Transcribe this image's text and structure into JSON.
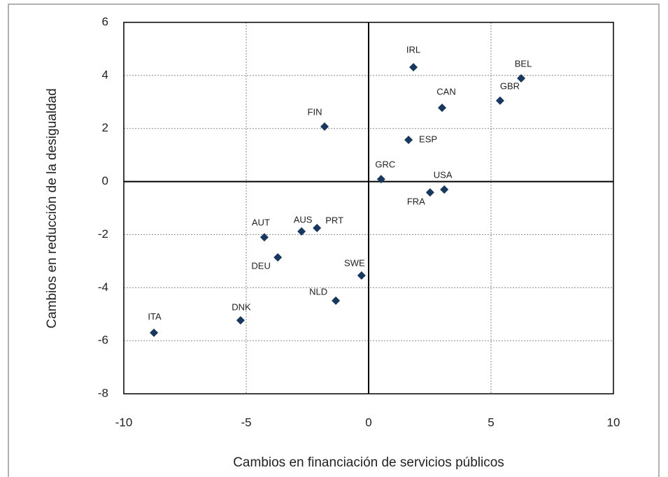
{
  "chart_data": {
    "type": "scatter",
    "x_label": "Cambios en financiación de servicios públicos",
    "y_label": "Cambios en reducción de la desigualdad",
    "xlim": [
      -10,
      10
    ],
    "ylim": [
      -8,
      6
    ],
    "xticks": [
      -10,
      -5,
      0,
      5,
      10
    ],
    "yticks": [
      -8,
      -6,
      -4,
      -2,
      0,
      2,
      4,
      6
    ],
    "grid": true,
    "color": "#17375e",
    "points": [
      {
        "name": "IRL",
        "x": 1.83,
        "y": 4.31
      },
      {
        "name": "BEL",
        "x": 6.23,
        "y": 3.89
      },
      {
        "name": "GBR",
        "x": 5.37,
        "y": 3.05
      },
      {
        "name": "CAN",
        "x": 3.0,
        "y": 2.78
      },
      {
        "name": "FIN",
        "x": -1.8,
        "y": 2.07
      },
      {
        "name": "ESP",
        "x": 1.63,
        "y": 1.57
      },
      {
        "name": "GRC",
        "x": 0.51,
        "y": 0.09
      },
      {
        "name": "USA",
        "x": 3.09,
        "y": -0.3
      },
      {
        "name": "FRA",
        "x": 2.51,
        "y": -0.41
      },
      {
        "name": "AUT",
        "x": -4.26,
        "y": -2.1
      },
      {
        "name": "AUS",
        "x": -2.74,
        "y": -1.88
      },
      {
        "name": "PRT",
        "x": -2.11,
        "y": -1.75
      },
      {
        "name": "DEU",
        "x": -3.71,
        "y": -2.86
      },
      {
        "name": "SWE",
        "x": -0.29,
        "y": -3.54
      },
      {
        "name": "NLD",
        "x": -1.34,
        "y": -4.49
      },
      {
        "name": "DNK",
        "x": -5.23,
        "y": -5.23
      },
      {
        "name": "ITA",
        "x": -8.77,
        "y": -5.7
      }
    ]
  }
}
